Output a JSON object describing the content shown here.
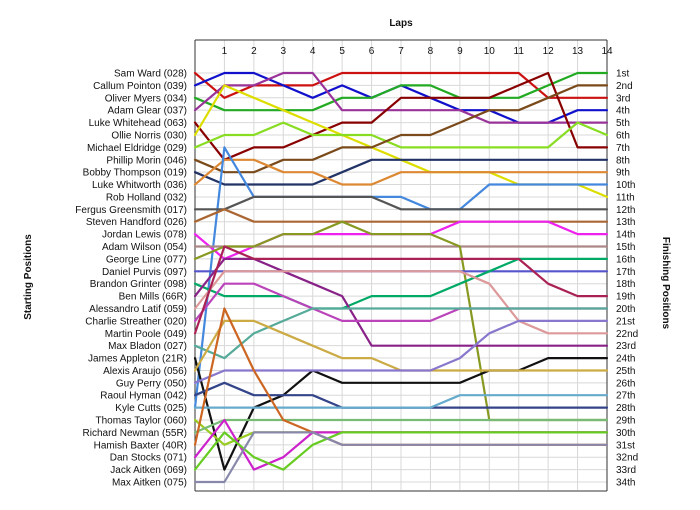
{
  "chart_data": {
    "type": "line",
    "title": "Laps",
    "xlabel": "Laps",
    "ylabel_left": "Starting Positions",
    "ylabel_right": "Finishing Positions",
    "x": [
      0,
      1,
      2,
      3,
      4,
      5,
      6,
      7,
      8,
      9,
      10,
      11,
      12,
      13,
      14
    ],
    "x_tick_labels": [
      "1",
      "2",
      "3",
      "4",
      "5",
      "6",
      "7",
      "8",
      "9",
      "10",
      "11",
      "12",
      "13",
      "14"
    ],
    "y_range": [
      1,
      34
    ],
    "y_inverted": true,
    "grid": true,
    "starting_labels": [
      "Sam Ward (028)",
      "Callum Pointon (039)",
      "Oliver Myers (034)",
      "Adam Glear (037)",
      "Luke Whitehead (063)",
      "Ollie Norris (030)",
      "Michael Eldridge (029)",
      "Phillip Morin (046)",
      "Bobby Thompson (019)",
      "Luke Whitworth (036)",
      "Rob Holland (032)",
      "Fergus Greensmith (017)",
      "Steven Handford (026)",
      "Jordan Lewis (078)",
      "Adam Wilson (054)",
      "George Line (077)",
      "Daniel Purvis (097)",
      "Brandon Grinter (098)",
      "Ben Mills (66R)",
      "Alessandro Latif (059)",
      "Charlie Streather (020)",
      "Martin Poole (049)",
      "Max Bladon (027)",
      "James Appleton (21R)",
      "Alexis Araujo (056)",
      "Guy Perry (050)",
      "Raoul Hyman (042)",
      "Kyle Cutts (025)",
      "Thomas Taylor (060)",
      "Richard Newman (55R)",
      "Hamish Baxter (40R)",
      "Dan Stocks (071)",
      "Jack Aitken (069)",
      "Max Aitken (075)"
    ],
    "finishing_labels": [
      "1st",
      "2nd",
      "3rd",
      "4th",
      "5th",
      "6th",
      "7th",
      "8th",
      "9th",
      "10th",
      "11th",
      "12th",
      "13th",
      "14th",
      "15th",
      "16th",
      "17th",
      "18th",
      "19th",
      "20th",
      "21st",
      "22nd",
      "23rd",
      "24th",
      "25th",
      "26th",
      "27th",
      "28th",
      "29th",
      "30th",
      "31st",
      "32nd",
      "33rd",
      "34th"
    ],
    "series": [
      {
        "color": "#cc1111",
        "values": [
          1,
          3,
          2,
          2,
          2,
          1,
          1,
          1,
          1,
          1,
          1,
          1,
          3,
          3,
          3
        ]
      },
      {
        "color": "#1111cc",
        "values": [
          2,
          1,
          1,
          2,
          3,
          2,
          3,
          2,
          3,
          4,
          4,
          5,
          5,
          4,
          4
        ]
      },
      {
        "color": "#22aa22",
        "values": [
          3,
          4,
          4,
          4,
          4,
          3,
          3,
          2,
          2,
          3,
          3,
          3,
          2,
          1,
          1
        ]
      },
      {
        "color": "#993399",
        "values": [
          4,
          2,
          2,
          1,
          1,
          4,
          4,
          4,
          4,
          4,
          5,
          5,
          5,
          5,
          5
        ]
      },
      {
        "color": "#880000",
        "values": [
          5,
          8,
          7,
          7,
          6,
          5,
          5,
          3,
          3,
          3,
          3,
          2,
          1,
          7,
          7
        ]
      },
      {
        "color": "#dddd00",
        "values": [
          6,
          2,
          3,
          4,
          5,
          6,
          7,
          8,
          9,
          9,
          9,
          10,
          10,
          10,
          11
        ]
      },
      {
        "color": "#88dd22",
        "values": [
          7,
          6,
          6,
          5,
          6,
          6,
          6,
          7,
          7,
          7,
          7,
          7,
          7,
          5,
          6
        ]
      },
      {
        "color": "#7a4a1a",
        "values": [
          8,
          9,
          9,
          8,
          8,
          7,
          7,
          6,
          6,
          5,
          4,
          4,
          3,
          2,
          2
        ]
      },
      {
        "color": "#223366",
        "values": [
          9,
          10,
          10,
          10,
          10,
          9,
          8,
          8,
          8,
          8,
          8,
          8,
          8,
          8,
          8
        ]
      },
      {
        "color": "#dd8833",
        "values": [
          10,
          8,
          8,
          9,
          9,
          10,
          10,
          9,
          9,
          9,
          9,
          9,
          9,
          9,
          9
        ]
      },
      {
        "color": "#4488dd",
        "values": [
          28,
          7,
          11,
          11,
          11,
          11,
          11,
          11,
          12,
          12,
          10,
          10,
          10,
          10,
          10
        ]
      },
      {
        "color": "#555555",
        "values": [
          12,
          12,
          11,
          11,
          11,
          11,
          11,
          12,
          12,
          12,
          12,
          12,
          12,
          12,
          12
        ]
      },
      {
        "color": "#aa6633",
        "values": [
          13,
          12,
          13,
          13,
          13,
          13,
          13,
          13,
          13,
          13,
          13,
          13,
          13,
          13,
          13
        ]
      },
      {
        "color": "#ee22ee",
        "values": [
          14,
          16,
          15,
          14,
          14,
          14,
          14,
          14,
          14,
          13,
          13,
          13,
          13,
          14,
          14
        ]
      },
      {
        "color": "#aa8888",
        "values": [
          15,
          15,
          15,
          15,
          15,
          15,
          15,
          15,
          15,
          15,
          15,
          15,
          15,
          15,
          15
        ]
      },
      {
        "color": "#889922",
        "values": [
          16,
          15,
          15,
          14,
          14,
          13,
          14,
          14,
          14,
          15,
          29,
          29,
          29,
          29,
          29
        ]
      },
      {
        "color": "#5555cc",
        "values": [
          17,
          17,
          17,
          17,
          17,
          17,
          17,
          17,
          17,
          17,
          17,
          17,
          17,
          17,
          17
        ]
      },
      {
        "color": "#00aa66",
        "values": [
          18,
          19,
          19,
          19,
          20,
          20,
          19,
          19,
          19,
          18,
          17,
          16,
          16,
          16,
          16
        ]
      },
      {
        "color": "#882288",
        "values": [
          19,
          16,
          16,
          17,
          18,
          19,
          23,
          23,
          23,
          23,
          23,
          23,
          23,
          23,
          23
        ]
      },
      {
        "color": "#dd9999",
        "values": [
          20,
          17,
          17,
          17,
          17,
          17,
          17,
          17,
          17,
          17,
          18,
          21,
          22,
          22,
          22
        ]
      },
      {
        "color": "#bb44bb",
        "values": [
          21,
          18,
          18,
          19,
          20,
          21,
          21,
          21,
          21,
          20,
          20,
          20,
          20,
          20,
          20
        ]
      },
      {
        "color": "#aa2255",
        "values": [
          22,
          15,
          16,
          16,
          16,
          16,
          16,
          16,
          16,
          16,
          16,
          16,
          18,
          19,
          19
        ]
      },
      {
        "color": "#55aa99",
        "values": [
          23,
          24,
          22,
          21,
          20,
          20,
          20,
          20,
          20,
          20,
          20,
          20,
          20,
          20,
          20
        ]
      },
      {
        "color": "#111111",
        "values": [
          24,
          33,
          28,
          27,
          25,
          26,
          26,
          26,
          26,
          26,
          25,
          25,
          24,
          24,
          24
        ]
      },
      {
        "color": "#ccaa44",
        "values": [
          25,
          21,
          21,
          22,
          23,
          24,
          24,
          25,
          25,
          25,
          25,
          25,
          25,
          25,
          25
        ]
      },
      {
        "color": "#8877cc",
        "values": [
          26,
          25,
          25,
          25,
          25,
          25,
          25,
          25,
          25,
          24,
          22,
          21,
          21,
          21,
          21
        ]
      },
      {
        "color": "#334488",
        "values": [
          27,
          26,
          27,
          27,
          27,
          28,
          28,
          28,
          28,
          28,
          28,
          28,
          28,
          28,
          28
        ]
      },
      {
        "color": "#66aacc",
        "values": [
          28,
          28,
          28,
          28,
          28,
          28,
          28,
          28,
          28,
          27,
          27,
          27,
          27,
          27,
          27
        ]
      },
      {
        "color": "#99cc22",
        "values": [
          29,
          31,
          30,
          30,
          30,
          30,
          30,
          30,
          30,
          30,
          30,
          30,
          30,
          30,
          30
        ]
      },
      {
        "color": "#77bb77",
        "values": [
          30,
          29,
          29,
          29,
          29,
          29,
          29,
          29,
          29,
          29,
          29,
          29,
          29,
          29,
          29
        ]
      },
      {
        "color": "#cc6622",
        "values": [
          31,
          20,
          25,
          29,
          30,
          31,
          31,
          31,
          31,
          31,
          31,
          31,
          31,
          31,
          31
        ]
      },
      {
        "color": "#cc22cc",
        "values": [
          32,
          29,
          33,
          32,
          30,
          30,
          30,
          30,
          30,
          30,
          30,
          30,
          30,
          30,
          30
        ]
      },
      {
        "color": "#66cc22",
        "values": [
          33,
          30,
          32,
          33,
          31,
          30,
          30,
          30,
          30,
          30,
          30,
          30,
          30,
          30,
          30
        ]
      },
      {
        "color": "#8888aa",
        "values": [
          34,
          34,
          30,
          30,
          30,
          31,
          31,
          31,
          31,
          31,
          31,
          31,
          31,
          31,
          31
        ]
      }
    ]
  }
}
